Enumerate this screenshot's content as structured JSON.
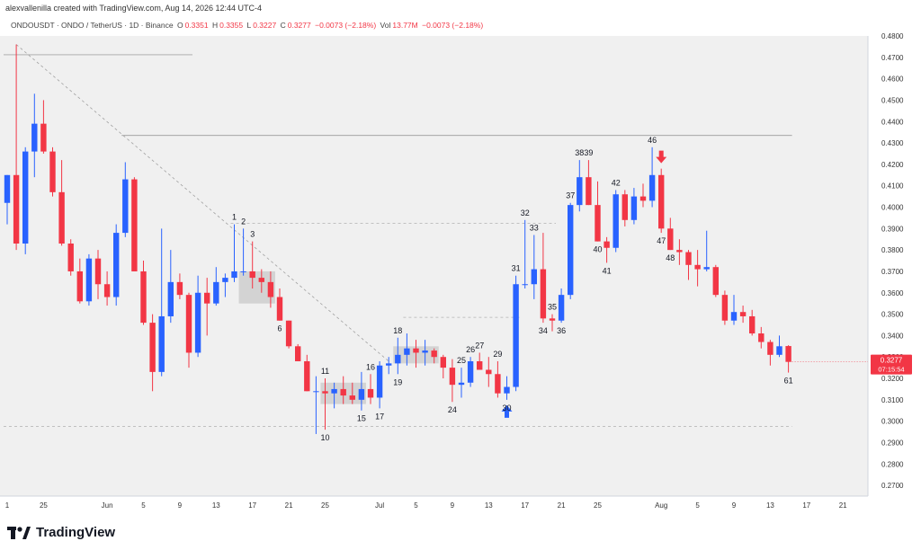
{
  "header": {
    "attribution": "alexvallenilla created with TradingView.com, Aug 14, 2026 12:44 UTC-4",
    "symbol": "ONDOUSDT · ONDO / TetherUS · 1D · Binance",
    "o_label": "O",
    "o_value": "0.3351",
    "h_label": "H",
    "h_value": "0.3355",
    "l_label": "L",
    "l_value": "0.3227",
    "c_label": "C",
    "c_value": "0.3277",
    "change": "−0.0073 (−2.18%)",
    "vol_label": "Vol",
    "vol_value": "13.77M",
    "vol_change": "−0.0073 (−2.18%)"
  },
  "price_tag": {
    "price": "0.3277",
    "countdown": "07:15:54",
    "color": "#f23645"
  },
  "footer": {
    "brand": "TradingView"
  },
  "colors": {
    "up": "#2962ff",
    "down": "#f23645",
    "grid": "#e0e3eb",
    "background": "#f0f0f0"
  },
  "chart_data": {
    "type": "candlestick",
    "ylim": [
      0.265,
      0.48
    ],
    "yticks": [
      "0.2700",
      "0.2800",
      "0.2900",
      "0.3000",
      "0.3100",
      "0.3200",
      "0.3300",
      "0.3400",
      "0.3500",
      "0.3600",
      "0.3700",
      "0.3800",
      "0.3900",
      "0.4000",
      "0.4100",
      "0.4200",
      "0.4300",
      "0.4400",
      "0.4500",
      "0.4600",
      "0.4700",
      "0.4800"
    ],
    "xticks": [
      {
        "i": 0,
        "label": "1"
      },
      {
        "i": 4,
        "label": "25"
      },
      {
        "i": 11,
        "label": "Jun"
      },
      {
        "i": 15,
        "label": "5"
      },
      {
        "i": 19,
        "label": "9"
      },
      {
        "i": 23,
        "label": "13"
      },
      {
        "i": 27,
        "label": "17"
      },
      {
        "i": 31,
        "label": "21"
      },
      {
        "i": 35,
        "label": "25"
      },
      {
        "i": 41,
        "label": "Jul"
      },
      {
        "i": 45,
        "label": "5"
      },
      {
        "i": 49,
        "label": "9"
      },
      {
        "i": 53,
        "label": "13"
      },
      {
        "i": 57,
        "label": "17"
      },
      {
        "i": 61,
        "label": "21"
      },
      {
        "i": 65,
        "label": "25"
      },
      {
        "i": 72,
        "label": "Aug"
      },
      {
        "i": 76,
        "label": "5"
      },
      {
        "i": 80,
        "label": "9"
      },
      {
        "i": 84,
        "label": "13"
      },
      {
        "i": 88,
        "label": "17"
      },
      {
        "i": 92,
        "label": "21"
      }
    ],
    "candles": [
      [
        0.402,
        0.415,
        0.392,
        0.415
      ],
      [
        0.415,
        0.476,
        0.38,
        0.383
      ],
      [
        0.383,
        0.428,
        0.378,
        0.426
      ],
      [
        0.426,
        0.453,
        0.414,
        0.439
      ],
      [
        0.439,
        0.45,
        0.425,
        0.426
      ],
      [
        0.426,
        0.428,
        0.405,
        0.407
      ],
      [
        0.407,
        0.422,
        0.382,
        0.383
      ],
      [
        0.383,
        0.385,
        0.368,
        0.37
      ],
      [
        0.37,
        0.376,
        0.355,
        0.356
      ],
      [
        0.356,
        0.378,
        0.354,
        0.376
      ],
      [
        0.376,
        0.38,
        0.357,
        0.364
      ],
      [
        0.364,
        0.37,
        0.354,
        0.358
      ],
      [
        0.358,
        0.392,
        0.354,
        0.388
      ],
      [
        0.388,
        0.421,
        0.386,
        0.413
      ],
      [
        0.413,
        0.414,
        0.372,
        0.37
      ],
      [
        0.37,
        0.375,
        0.345,
        0.346
      ],
      [
        0.346,
        0.35,
        0.314,
        0.323
      ],
      [
        0.323,
        0.39,
        0.321,
        0.349
      ],
      [
        0.349,
        0.38,
        0.346,
        0.365
      ],
      [
        0.365,
        0.369,
        0.357,
        0.359
      ],
      [
        0.359,
        0.36,
        0.325,
        0.332
      ],
      [
        0.332,
        0.368,
        0.33,
        0.36
      ],
      [
        0.36,
        0.367,
        0.34,
        0.355
      ],
      [
        0.355,
        0.372,
        0.354,
        0.365
      ],
      [
        0.365,
        0.369,
        0.358,
        0.367
      ],
      [
        0.367,
        0.392,
        0.365,
        0.37
      ],
      [
        0.37,
        0.39,
        0.368,
        0.37
      ],
      [
        0.37,
        0.384,
        0.362,
        0.367
      ],
      [
        0.367,
        0.371,
        0.36,
        0.365
      ],
      [
        0.365,
        0.37,
        0.353,
        0.358
      ],
      [
        0.358,
        0.362,
        0.347,
        0.347
      ],
      [
        0.347,
        0.347,
        0.334,
        0.335
      ],
      [
        0.335,
        0.336,
        0.328,
        0.328
      ],
      [
        0.328,
        0.331,
        0.314,
        0.314
      ],
      [
        0.314,
        0.321,
        0.294,
        0.314
      ],
      [
        0.314,
        0.32,
        0.296,
        0.313
      ],
      [
        0.313,
        0.318,
        0.306,
        0.315
      ],
      [
        0.315,
        0.321,
        0.308,
        0.312
      ],
      [
        0.312,
        0.318,
        0.308,
        0.31
      ],
      [
        0.31,
        0.323,
        0.305,
        0.315
      ],
      [
        0.315,
        0.322,
        0.308,
        0.311
      ],
      [
        0.311,
        0.328,
        0.306,
        0.326
      ],
      [
        0.326,
        0.33,
        0.322,
        0.327
      ],
      [
        0.327,
        0.339,
        0.322,
        0.331
      ],
      [
        0.331,
        0.341,
        0.326,
        0.334
      ],
      [
        0.334,
        0.338,
        0.325,
        0.332
      ],
      [
        0.332,
        0.338,
        0.326,
        0.333
      ],
      [
        0.333,
        0.334,
        0.327,
        0.33
      ],
      [
        0.33,
        0.331,
        0.32,
        0.325
      ],
      [
        0.325,
        0.329,
        0.309,
        0.317
      ],
      [
        0.317,
        0.325,
        0.311,
        0.318
      ],
      [
        0.318,
        0.33,
        0.316,
        0.328
      ],
      [
        0.328,
        0.332,
        0.324,
        0.324
      ],
      [
        0.324,
        0.33,
        0.316,
        0.322
      ],
      [
        0.322,
        0.328,
        0.311,
        0.313
      ],
      [
        0.313,
        0.321,
        0.31,
        0.316
      ],
      [
        0.316,
        0.368,
        0.314,
        0.364
      ],
      [
        0.364,
        0.394,
        0.362,
        0.364
      ],
      [
        0.364,
        0.387,
        0.357,
        0.371
      ],
      [
        0.371,
        0.388,
        0.346,
        0.348
      ],
      [
        0.348,
        0.35,
        0.342,
        0.347
      ],
      [
        0.347,
        0.362,
        0.346,
        0.359
      ],
      [
        0.359,
        0.402,
        0.357,
        0.401
      ],
      [
        0.401,
        0.422,
        0.398,
        0.414
      ],
      [
        0.414,
        0.422,
        0.401,
        0.401
      ],
      [
        0.401,
        0.412,
        0.384,
        0.384
      ],
      [
        0.384,
        0.386,
        0.374,
        0.381
      ],
      [
        0.381,
        0.408,
        0.379,
        0.406
      ],
      [
        0.406,
        0.408,
        0.391,
        0.394
      ],
      [
        0.394,
        0.409,
        0.392,
        0.405
      ],
      [
        0.405,
        0.411,
        0.4,
        0.403
      ],
      [
        0.403,
        0.428,
        0.4,
        0.415
      ],
      [
        0.415,
        0.418,
        0.388,
        0.39
      ],
      [
        0.39,
        0.395,
        0.38,
        0.38
      ],
      [
        0.38,
        0.385,
        0.373,
        0.379
      ],
      [
        0.379,
        0.38,
        0.366,
        0.373
      ],
      [
        0.373,
        0.38,
        0.363,
        0.371
      ],
      [
        0.371,
        0.389,
        0.37,
        0.372
      ],
      [
        0.372,
        0.373,
        0.358,
        0.359
      ],
      [
        0.359,
        0.361,
        0.345,
        0.347
      ],
      [
        0.347,
        0.359,
        0.345,
        0.351
      ],
      [
        0.351,
        0.354,
        0.346,
        0.349
      ],
      [
        0.349,
        0.352,
        0.34,
        0.341
      ],
      [
        0.341,
        0.344,
        0.334,
        0.337
      ],
      [
        0.337,
        0.338,
        0.326,
        0.331
      ],
      [
        0.331,
        0.34,
        0.33,
        0.335
      ],
      [
        0.3351,
        0.3355,
        0.3227,
        0.3277
      ]
    ],
    "labels": [
      {
        "i": 25,
        "text": "1",
        "pos": "above"
      },
      {
        "i": 26,
        "text": "2",
        "pos": "above"
      },
      {
        "i": 27,
        "text": "3",
        "pos": "above"
      },
      {
        "i": 30,
        "text": "6",
        "pos": "below"
      },
      {
        "i": 35,
        "text": "10",
        "pos": "below"
      },
      {
        "i": 35,
        "text": "11",
        "pos": "above"
      },
      {
        "i": 39,
        "text": "15",
        "pos": "below"
      },
      {
        "i": 40,
        "text": "16",
        "pos": "above"
      },
      {
        "i": 41,
        "text": "17",
        "pos": "below"
      },
      {
        "i": 43,
        "text": "18",
        "pos": "above"
      },
      {
        "i": 43,
        "text": "19",
        "pos": "below"
      },
      {
        "i": 49,
        "text": "24",
        "pos": "below"
      },
      {
        "i": 50,
        "text": "25",
        "pos": "above"
      },
      {
        "i": 51,
        "text": "26",
        "pos": "above"
      },
      {
        "i": 52,
        "text": "27",
        "pos": "above"
      },
      {
        "i": 54,
        "text": "29",
        "pos": "above"
      },
      {
        "i": 55,
        "text": "30",
        "pos": "below"
      },
      {
        "i": 56,
        "text": "31",
        "pos": "above"
      },
      {
        "i": 57,
        "text": "32",
        "pos": "above"
      },
      {
        "i": 58,
        "text": "33",
        "pos": "above"
      },
      {
        "i": 59,
        "text": "34",
        "pos": "below"
      },
      {
        "i": 60,
        "text": "35",
        "pos": "above"
      },
      {
        "i": 61,
        "text": "36",
        "pos": "below"
      },
      {
        "i": 62,
        "text": "37",
        "pos": "above"
      },
      {
        "i": 63,
        "text": "38",
        "pos": "above"
      },
      {
        "i": 64,
        "text": "39",
        "pos": "above"
      },
      {
        "i": 65,
        "text": "40",
        "pos": "below"
      },
      {
        "i": 66,
        "text": "41",
        "pos": "below"
      },
      {
        "i": 67,
        "text": "42",
        "pos": "above"
      },
      {
        "i": 71,
        "text": "46",
        "pos": "above"
      },
      {
        "i": 72,
        "text": "47",
        "pos": "below"
      },
      {
        "i": 73,
        "text": "48",
        "pos": "below"
      },
      {
        "i": 86,
        "text": "61",
        "pos": "below"
      }
    ],
    "hlines": [
      {
        "price": 0.4712,
        "i0": 0,
        "i1": 20,
        "style": "solid"
      },
      {
        "price": 0.4335,
        "i0": 13,
        "i1": 86,
        "style": "solid"
      },
      {
        "price": 0.3925,
        "i0": 25,
        "i1": 60,
        "style": "dashed"
      },
      {
        "price": 0.3485,
        "i0": 44,
        "i1": 56,
        "style": "dashed"
      },
      {
        "price": 0.2975,
        "i0": 0,
        "i1": 86,
        "style": "dashed"
      }
    ],
    "trendline": {
      "from": [
        1,
        0.476
      ],
      "to": [
        42,
        0.328
      ]
    },
    "boxes": [
      {
        "i0": 26,
        "i1": 29,
        "p0": 0.355,
        "p1": 0.37
      },
      {
        "i0": 35,
        "i1": 39,
        "p0": 0.308,
        "p1": 0.318
      },
      {
        "i0": 43,
        "i1": 47,
        "p0": 0.327,
        "p1": 0.335
      }
    ],
    "arrows": [
      {
        "i": 55,
        "dir": "up",
        "color": "#2962ff"
      },
      {
        "i": 72,
        "dir": "down",
        "color": "#f23645"
      }
    ]
  }
}
